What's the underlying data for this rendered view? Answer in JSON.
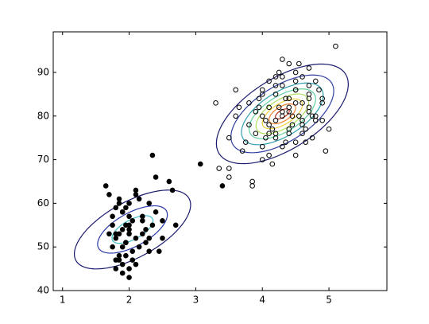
{
  "chart_data": {
    "type": "scatter",
    "xlim": [
      0.86,
      5.87
    ],
    "ylim": [
      40,
      99.3
    ],
    "xticks": [
      1,
      2,
      3,
      4,
      5
    ],
    "yticks": [
      40,
      50,
      60,
      70,
      80,
      90
    ],
    "series": [
      {
        "marker": "filled",
        "color": "#000000",
        "x": [
          1.8,
          1.9,
          2.0,
          2.1,
          1.75,
          1.85,
          2.2,
          2.3,
          1.95,
          2.05,
          1.7,
          1.8,
          1.9,
          2.0,
          2.4,
          2.5,
          1.85,
          1.95,
          2.15,
          2.25,
          1.8,
          1.9,
          2.0,
          2.6,
          1.65,
          1.75,
          2.1,
          2.3,
          2.45,
          1.85,
          1.95,
          2.05,
          2.2,
          1.9,
          1.8,
          2.0,
          2.35,
          2.7,
          1.7,
          1.95,
          2.1,
          2.25,
          1.85,
          2.0,
          1.9,
          2.15,
          2.5,
          1.8,
          2.0,
          1.9,
          2.05,
          2.3,
          2.2,
          1.75,
          1.95,
          2.4,
          2.65,
          1.85,
          2.1,
          2.0,
          2.35,
          3.07,
          3.4
        ],
        "y": [
          53,
          54,
          55,
          52,
          50,
          48,
          57,
          60,
          51,
          49,
          62,
          59,
          46,
          45,
          58,
          56,
          53,
          55,
          50,
          54,
          47,
          58,
          60,
          65,
          64,
          57,
          63,
          52,
          49,
          61,
          51,
          56,
          53,
          44,
          52,
          43,
          55,
          55,
          53,
          48,
          46,
          51,
          60,
          57,
          50,
          61,
          52,
          45,
          54,
          58,
          47,
          49,
          56,
          55,
          59,
          66,
          63,
          47,
          62,
          53,
          71,
          69,
          64
        ]
      },
      {
        "marker": "open",
        "color": "#000000",
        "x": [
          4.0,
          4.1,
          4.2,
          4.3,
          4.4,
          4.5,
          4.6,
          4.7,
          4.8,
          3.9,
          3.8,
          4.0,
          4.1,
          4.2,
          4.3,
          4.4,
          4.5,
          4.6,
          4.7,
          4.9,
          5.0,
          3.7,
          3.6,
          3.5,
          4.0,
          4.1,
          4.2,
          4.3,
          4.4,
          4.5,
          4.6,
          4.7,
          4.8,
          4.9,
          3.9,
          3.8,
          4.1,
          4.2,
          4.3,
          4.4,
          4.5,
          4.6,
          4.7,
          4.0,
          4.3,
          4.5,
          4.7,
          4.9,
          5.1,
          3.3,
          3.5,
          3.6,
          3.85,
          4.15,
          4.35,
          4.55,
          4.75,
          4.95,
          4.05,
          4.25,
          4.45,
          4.65,
          4.85,
          3.95,
          4.15,
          4.35,
          4.55,
          4.75,
          4.0,
          4.2,
          4.4,
          4.6,
          4.8,
          3.75,
          3.65,
          4.1,
          4.3,
          4.5,
          4.7,
          4.25,
          4.45,
          4.05,
          4.65,
          3.95,
          4.5,
          3.5,
          3.35,
          3.85,
          4.2,
          4.4
        ],
        "y": [
          80,
          82,
          79,
          81,
          84,
          83,
          78,
          85,
          80,
          76,
          78,
          86,
          88,
          75,
          73,
          77,
          90,
          89,
          82,
          79,
          77,
          72,
          80,
          75,
          70,
          71,
          85,
          87,
          92,
          74,
          76,
          81,
          88,
          84,
          81,
          83,
          78,
          76,
          80,
          82,
          86,
          79,
          91,
          73,
          93,
          71,
          87,
          83,
          96,
          83,
          68,
          86,
          65,
          77,
          84,
          80,
          75,
          72,
          79,
          90,
          78,
          74,
          86,
          82,
          69,
          74,
          92,
          80,
          85,
          87,
          81,
          83,
          79,
          74,
          82,
          76,
          89,
          88,
          84,
          82,
          80,
          75,
          77,
          84,
          86,
          66,
          68,
          64,
          89,
          76
        ]
      }
    ],
    "contours": [
      {
        "center": [
          2.05,
          54
        ],
        "axis1": [
          0.85,
          7.1
        ],
        "axis2": [
          0.2,
          -5.6
        ],
        "color": "#1a1a6e"
      },
      {
        "center": [
          2.05,
          54
        ],
        "axis1": [
          0.51,
          4.26
        ],
        "axis2": [
          0.12,
          -3.36
        ],
        "color": "#2838a8"
      },
      {
        "center": [
          2.05,
          54
        ],
        "axis1": [
          0.3,
          2.49
        ],
        "axis2": [
          0.07,
          -1.96
        ],
        "color": "#40c0c8"
      },
      {
        "center": [
          4.3,
          80.5
        ],
        "axis1": [
          0.95,
          9.1
        ],
        "axis2": [
          0.28,
          -6.9
        ],
        "color": "#1a1a6e"
      },
      {
        "center": [
          4.3,
          80.5
        ],
        "axis1": [
          0.74,
          7.1
        ],
        "axis2": [
          0.22,
          -5.38
        ],
        "color": "#3040a0"
      },
      {
        "center": [
          4.3,
          80.5
        ],
        "axis1": [
          0.59,
          5.64
        ],
        "axis2": [
          0.17,
          -4.28
        ],
        "color": "#30a0b0"
      },
      {
        "center": [
          4.3,
          80.5
        ],
        "axis1": [
          0.48,
          4.55
        ],
        "axis2": [
          0.14,
          -3.45
        ],
        "color": "#60d0a0"
      },
      {
        "center": [
          4.3,
          80.5
        ],
        "axis1": [
          0.38,
          3.64
        ],
        "axis2": [
          0.11,
          -2.76
        ],
        "color": "#b0e060"
      },
      {
        "center": [
          4.3,
          80.5
        ],
        "axis1": [
          0.29,
          2.73
        ],
        "axis2": [
          0.08,
          -2.07
        ],
        "color": "#f0d040"
      },
      {
        "center": [
          4.3,
          80.5
        ],
        "axis1": [
          0.19,
          1.82
        ],
        "axis2": [
          0.06,
          -1.38
        ],
        "color": "#f08030"
      },
      {
        "center": [
          4.3,
          80.5
        ],
        "axis1": [
          0.1,
          0.91
        ],
        "axis2": [
          0.03,
          -0.69
        ],
        "color": "#c03020"
      }
    ]
  }
}
